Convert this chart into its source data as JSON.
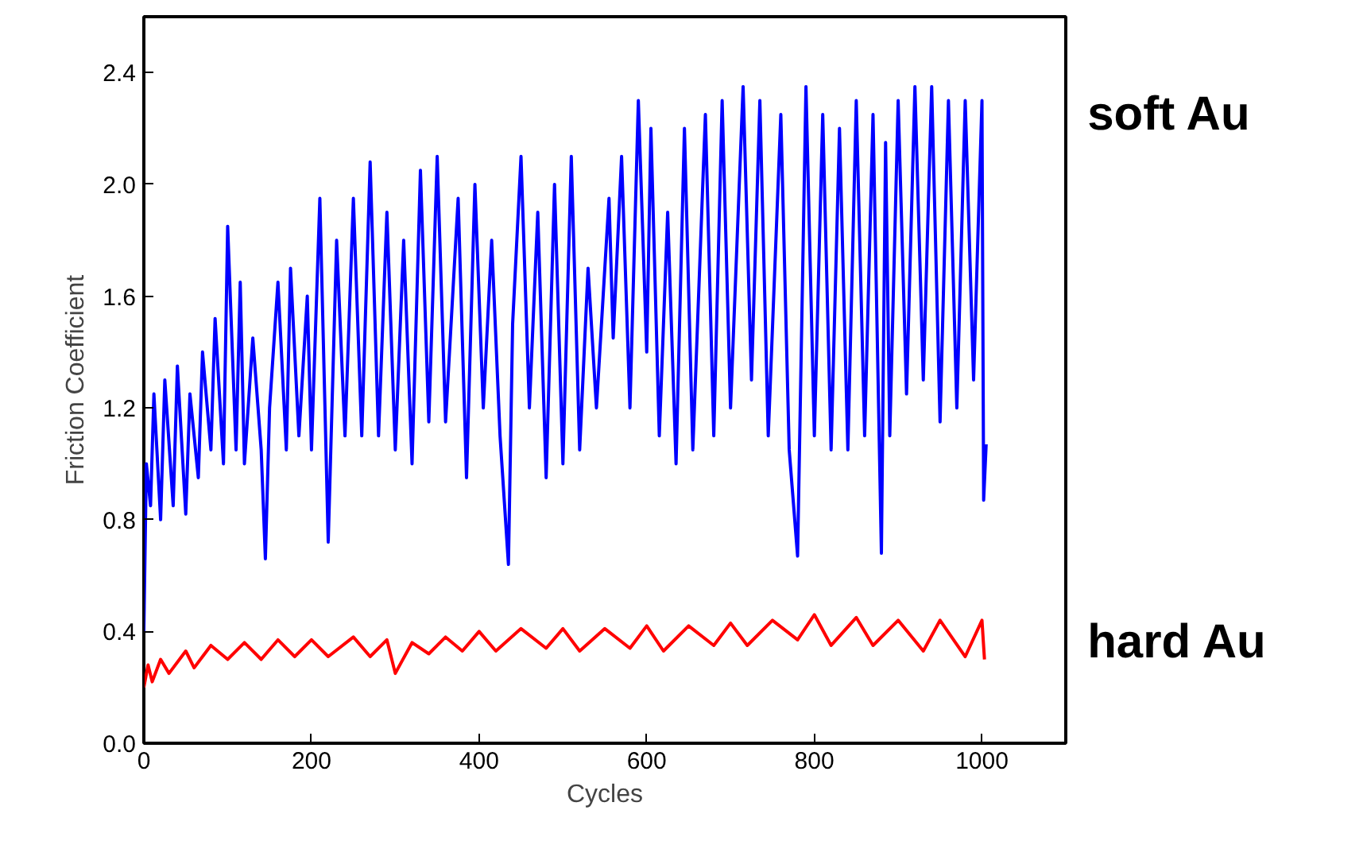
{
  "chart_data": {
    "type": "line",
    "xlabel": "Cycles",
    "ylabel": "Friction Coefficient",
    "xlim": [
      0,
      1100
    ],
    "xticks": [
      0,
      200,
      400,
      600,
      800,
      1000
    ],
    "ylim": [
      0,
      2.6
    ],
    "yticks": [
      {
        "value": 0,
        "label": "0.0"
      },
      0.4,
      0.8,
      1.2,
      1.6,
      {
        "value": 2,
        "label": "2.0"
      },
      2.4
    ],
    "grid": false,
    "series": [
      {
        "name": "soft Au",
        "color": "#0000ff",
        "x": [
          0,
          3,
          8,
          12,
          20,
          25,
          35,
          40,
          50,
          55,
          65,
          70,
          80,
          85,
          95,
          100,
          110,
          115,
          120,
          130,
          140,
          145,
          150,
          160,
          170,
          175,
          185,
          195,
          200,
          210,
          220,
          230,
          240,
          250,
          260,
          270,
          280,
          290,
          300,
          310,
          320,
          330,
          340,
          350,
          360,
          375,
          385,
          395,
          405,
          415,
          425,
          435,
          440,
          450,
          460,
          470,
          480,
          490,
          500,
          510,
          520,
          530,
          540,
          555,
          560,
          570,
          580,
          590,
          600,
          605,
          615,
          625,
          635,
          645,
          655,
          670,
          680,
          690,
          700,
          715,
          725,
          735,
          745,
          760,
          770,
          780,
          790,
          800,
          810,
          820,
          830,
          840,
          850,
          860,
          870,
          880,
          885,
          890,
          900,
          910,
          920,
          930,
          940,
          950,
          960,
          970,
          980,
          990,
          1000,
          1002,
          1005
        ],
        "values": [
          0.4,
          1.0,
          0.85,
          1.25,
          0.8,
          1.3,
          0.85,
          1.35,
          0.82,
          1.25,
          0.95,
          1.4,
          1.05,
          1.52,
          1.0,
          1.85,
          1.05,
          1.65,
          1.0,
          1.45,
          1.05,
          0.66,
          1.2,
          1.65,
          1.05,
          1.7,
          1.1,
          1.6,
          1.05,
          1.95,
          0.72,
          1.8,
          1.1,
          1.95,
          1.1,
          2.08,
          1.1,
          1.9,
          1.05,
          1.8,
          1.0,
          2.05,
          1.15,
          2.1,
          1.15,
          1.95,
          0.95,
          2.0,
          1.2,
          1.8,
          1.1,
          0.64,
          1.5,
          2.1,
          1.2,
          1.9,
          0.95,
          2.0,
          1.0,
          2.1,
          1.05,
          1.7,
          1.2,
          1.95,
          1.45,
          2.1,
          1.2,
          2.3,
          1.4,
          2.2,
          1.1,
          1.9,
          1.0,
          2.2,
          1.05,
          2.25,
          1.1,
          2.3,
          1.2,
          2.35,
          1.3,
          2.3,
          1.1,
          2.25,
          1.05,
          0.67,
          2.35,
          1.1,
          2.25,
          1.05,
          2.2,
          1.05,
          2.3,
          1.1,
          2.25,
          0.68,
          2.15,
          1.1,
          2.3,
          1.25,
          2.35,
          1.3,
          2.35,
          1.15,
          2.3,
          1.2,
          2.3,
          1.3,
          2.3,
          0.87,
          1.07
        ]
      },
      {
        "name": "hard Au",
        "color": "#ff0000",
        "x": [
          0,
          5,
          10,
          20,
          30,
          50,
          60,
          80,
          100,
          120,
          140,
          160,
          180,
          200,
          220,
          250,
          270,
          290,
          300,
          320,
          340,
          360,
          380,
          400,
          420,
          450,
          480,
          500,
          520,
          550,
          580,
          600,
          620,
          650,
          680,
          700,
          720,
          750,
          780,
          800,
          820,
          850,
          870,
          900,
          930,
          950,
          980,
          1000,
          1003
        ],
        "values": [
          0.2,
          0.28,
          0.22,
          0.3,
          0.25,
          0.33,
          0.27,
          0.35,
          0.3,
          0.36,
          0.3,
          0.37,
          0.31,
          0.37,
          0.31,
          0.38,
          0.31,
          0.37,
          0.25,
          0.36,
          0.32,
          0.38,
          0.33,
          0.4,
          0.33,
          0.41,
          0.34,
          0.41,
          0.33,
          0.41,
          0.34,
          0.42,
          0.33,
          0.42,
          0.35,
          0.43,
          0.35,
          0.44,
          0.37,
          0.46,
          0.35,
          0.45,
          0.35,
          0.44,
          0.33,
          0.44,
          0.31,
          0.44,
          0.3
        ]
      }
    ]
  }
}
